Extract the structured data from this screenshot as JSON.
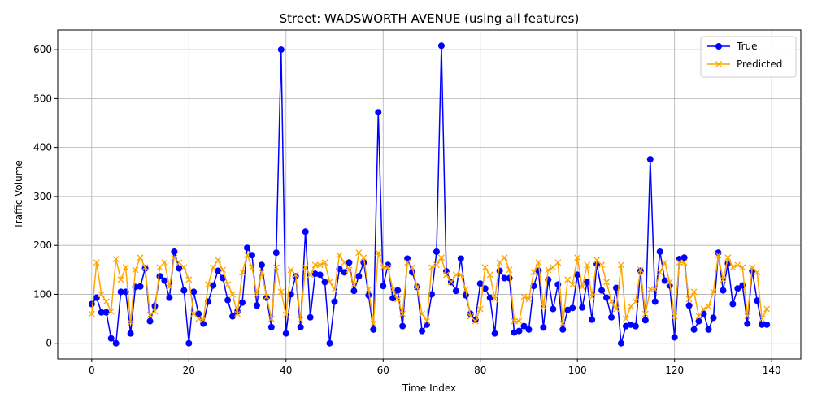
{
  "chart_data": {
    "type": "line",
    "title": "Street: WADSWORTH AVENUE (using all features)",
    "xlabel": "Time Index",
    "ylabel": "Traffic Volume",
    "xlim": [
      -7,
      146
    ],
    "ylim": [
      -32,
      640
    ],
    "xticks": [
      0,
      20,
      40,
      60,
      80,
      100,
      120,
      140
    ],
    "yticks": [
      0,
      100,
      200,
      300,
      400,
      500,
      600
    ],
    "grid": true,
    "legend_position": "top-right",
    "series": [
      {
        "name": "True",
        "color": "#0000ff",
        "marker": "circle",
        "values": [
          80,
          93,
          63,
          63,
          10,
          0,
          105,
          105,
          20,
          115,
          116,
          153,
          45,
          76,
          137,
          128,
          93,
          187,
          153,
          108,
          0,
          105,
          60,
          40,
          85,
          118,
          148,
          133,
          88,
          55,
          65,
          83,
          195,
          180,
          77,
          160,
          93,
          33,
          185,
          600,
          20,
          100,
          137,
          33,
          228,
          53,
          142,
          140,
          125,
          0,
          85,
          152,
          145,
          165,
          107,
          137,
          165,
          98,
          28,
          472,
          117,
          160,
          92,
          108,
          35,
          173,
          145,
          115,
          25,
          38,
          100,
          187,
          608,
          147,
          125,
          107,
          173,
          98,
          60,
          48,
          122,
          112,
          93,
          20,
          148,
          133,
          133,
          22,
          25,
          35,
          28,
          117,
          148,
          32,
          130,
          70,
          120,
          28,
          68,
          72,
          140,
          73,
          125,
          48,
          162,
          108,
          93,
          53,
          113,
          0,
          35,
          38,
          35,
          148,
          47,
          376,
          85,
          187,
          128,
          118,
          12,
          172,
          175,
          77,
          28,
          45,
          60,
          28,
          52,
          185,
          108,
          163,
          80,
          112,
          118,
          40,
          148,
          87,
          38,
          38
        ]
      },
      {
        "name": "Predicted",
        "color": "#ffa500",
        "marker": "x",
        "values": [
          60,
          165,
          100,
          85,
          65,
          172,
          130,
          155,
          42,
          150,
          175,
          155,
          58,
          65,
          155,
          165,
          115,
          175,
          165,
          155,
          130,
          60,
          50,
          48,
          120,
          155,
          170,
          150,
          120,
          100,
          60,
          145,
          180,
          155,
          100,
          145,
          95,
          50,
          155,
          105,
          58,
          150,
          140,
          48,
          155,
          140,
          160,
          160,
          165,
          125,
          110,
          180,
          165,
          150,
          120,
          185,
          175,
          110,
          40,
          185,
          155,
          155,
          110,
          90,
          60,
          165,
          155,
          115,
          60,
          45,
          155,
          160,
          175,
          140,
          125,
          140,
          140,
          110,
          55,
          45,
          70,
          155,
          140,
          90,
          165,
          175,
          150,
          45,
          45,
          95,
          90,
          145,
          165,
          75,
          150,
          155,
          165,
          40,
          130,
          120,
          175,
          115,
          160,
          95,
          170,
          160,
          125,
          85,
          70,
          160,
          50,
          75,
          85,
          150,
          60,
          110,
          110,
          145,
          165,
          125,
          55,
          165,
          165,
          90,
          105,
          55,
          70,
          75,
          105,
          180,
          130,
          175,
          155,
          160,
          155,
          55,
          155,
          145,
          50,
          70
        ]
      }
    ]
  }
}
